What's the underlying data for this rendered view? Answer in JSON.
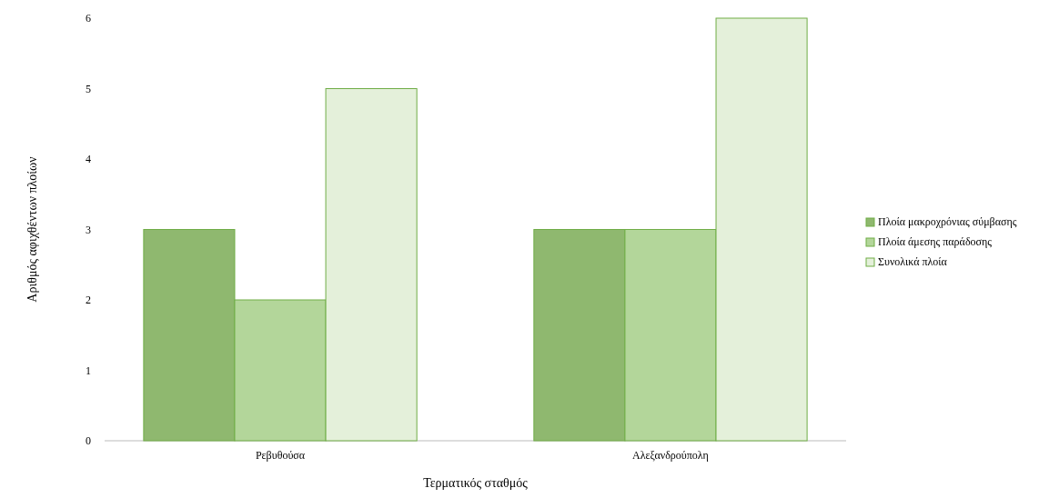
{
  "chart_data": {
    "type": "bar",
    "xlabel": "Τερματικός σταθμός",
    "ylabel": "Αριθμός αφιχθέντων πλοίων",
    "categories": [
      "Ρεβυθούσα",
      "Αλεξανδρούπολη"
    ],
    "series": [
      {
        "name": "Πλοία μακροχρόνιας σύμβασης",
        "color": "#8fb86f",
        "values": [
          3,
          3
        ]
      },
      {
        "name": "Πλοία άμεσης παράδοσης",
        "color": "#b3d69a",
        "values": [
          2,
          3
        ]
      },
      {
        "name": "Συνολικά πλοία",
        "color": "#e4f0da",
        "values": [
          5,
          6
        ]
      }
    ],
    "ylim": [
      0,
      6
    ],
    "yticks": [
      0,
      1,
      2,
      3,
      4,
      5,
      6
    ],
    "grid": false,
    "legend": "right"
  }
}
